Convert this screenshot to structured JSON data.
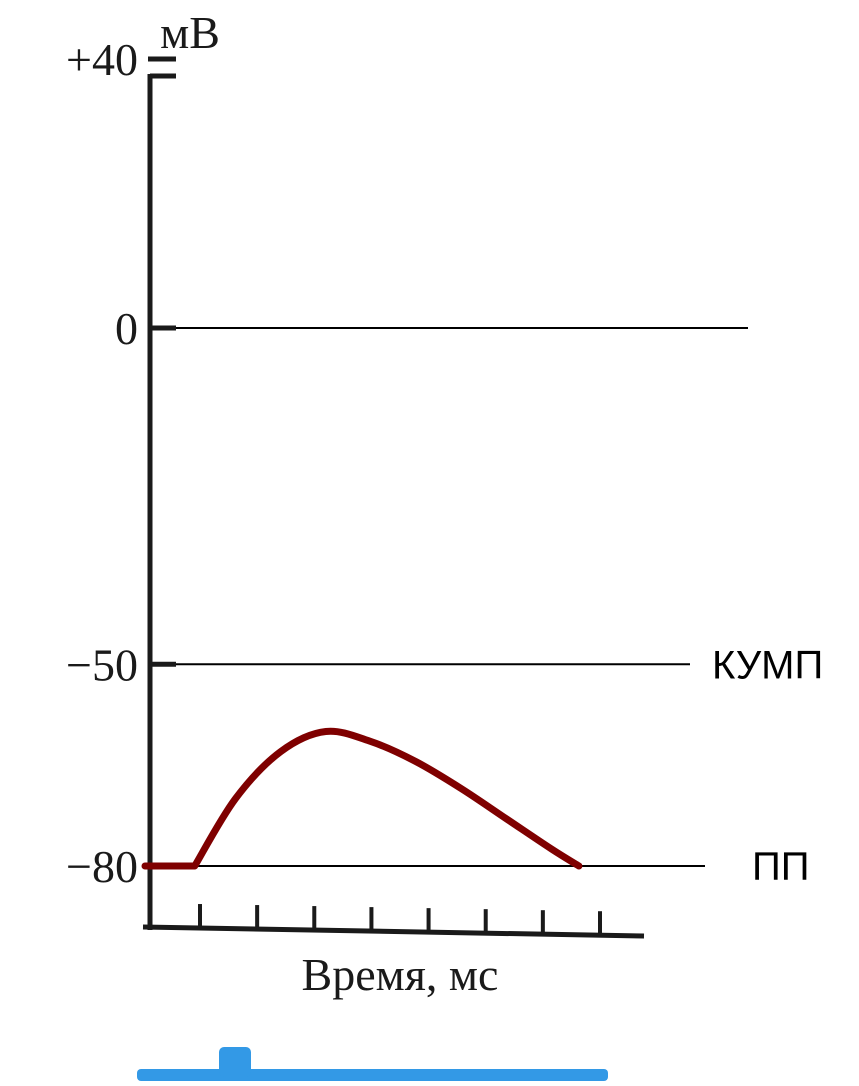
{
  "chart_data": {
    "type": "line",
    "ylabel": "мВ",
    "xlabel": "Время, мс",
    "ylim": [
      -80,
      40
    ],
    "y_ticks": [
      {
        "value": 40,
        "label": "+40"
      },
      {
        "value": 0,
        "label": "0"
      },
      {
        "value": -50,
        "label": "−50"
      },
      {
        "value": -80,
        "label": "−80"
      }
    ],
    "x_tick_count": 8,
    "reference_lines": [
      {
        "value": 0,
        "label": ""
      },
      {
        "value": -50,
        "label": "КУМП"
      },
      {
        "value": -80,
        "label": "ПП"
      }
    ],
    "series": [
      {
        "color": "#7f0000",
        "points": [
          {
            "x": 0,
            "y": -80
          },
          {
            "x": 0.55,
            "y": -80
          },
          {
            "x": 1.0,
            "y": -70
          },
          {
            "x": 1.5,
            "y": -63
          },
          {
            "x": 2.0,
            "y": -60
          },
          {
            "x": 2.5,
            "y": -61.5
          },
          {
            "x": 3.0,
            "y": -64.5
          },
          {
            "x": 3.5,
            "y": -68.5
          },
          {
            "x": 4.0,
            "y": -73
          },
          {
            "x": 4.5,
            "y": -77.5
          },
          {
            "x": 4.8,
            "y": -80
          }
        ]
      }
    ],
    "xlim": [
      0,
      5
    ],
    "stimulus_marker": {
      "color": "#3399e6"
    }
  }
}
